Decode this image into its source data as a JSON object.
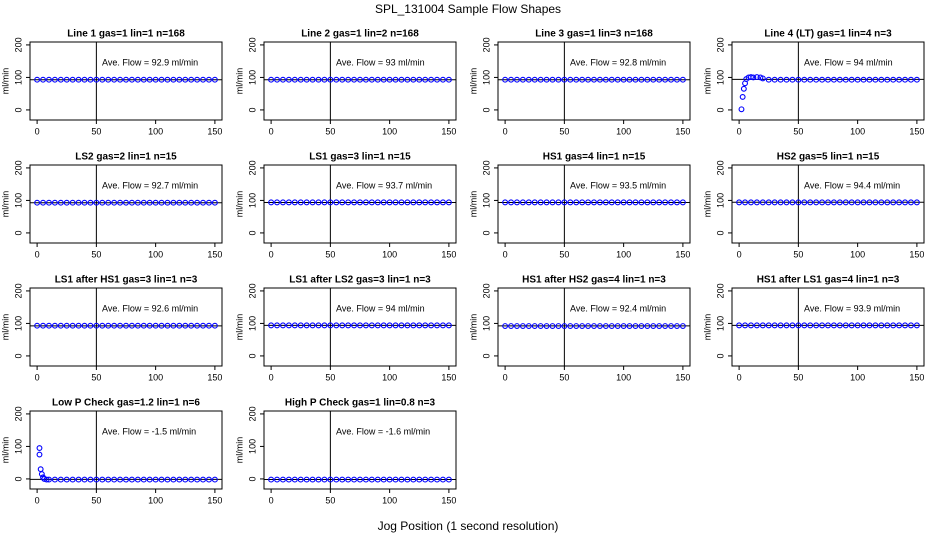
{
  "title": "SPL_131004  Sample Flow Shapes",
  "xlabel": "Jog Position (1 second resolution)",
  "chart_data": [
    {
      "type": "scatter",
      "title": "Line 1 gas=1 lin=1 n=168",
      "annotation": "Ave. Flow = 92.9  ml/min",
      "ylabel": "ml/min",
      "color": "#0000ff",
      "xlim": [
        -6,
        156
      ],
      "ylim": [
        -31,
        209
      ],
      "xticks": [
        0,
        50,
        100,
        150
      ],
      "yticks": [
        0,
        100,
        200
      ],
      "vline": 50,
      "hline": 92.9,
      "x": [
        0,
        5,
        10,
        15,
        20,
        25,
        30,
        35,
        40,
        45,
        50,
        55,
        60,
        65,
        70,
        75,
        80,
        85,
        90,
        95,
        100,
        105,
        110,
        115,
        120,
        125,
        130,
        135,
        140,
        145,
        150
      ],
      "values": [
        93,
        93,
        93,
        93,
        93,
        93,
        93,
        93,
        93,
        93,
        93,
        93,
        93,
        93,
        93,
        93,
        93,
        93,
        93,
        93,
        93,
        93,
        93,
        93,
        93,
        93,
        93,
        93,
        93,
        93,
        93
      ]
    },
    {
      "type": "scatter",
      "title": "Line 2 gas=1 lin=2 n=168",
      "annotation": "Ave. Flow = 93  ml/min",
      "ylabel": "ml/min",
      "color": "#0000ff",
      "xlim": [
        -6,
        156
      ],
      "ylim": [
        -31,
        209
      ],
      "xticks": [
        0,
        50,
        100,
        150
      ],
      "yticks": [
        0,
        100,
        200
      ],
      "vline": 50,
      "hline": 93,
      "x": [
        0,
        5,
        10,
        15,
        20,
        25,
        30,
        35,
        40,
        45,
        50,
        55,
        60,
        65,
        70,
        75,
        80,
        85,
        90,
        95,
        100,
        105,
        110,
        115,
        120,
        125,
        130,
        135,
        140,
        145,
        150
      ],
      "values": [
        93,
        93,
        93,
        93,
        93,
        93,
        93,
        93,
        93,
        93,
        93,
        93,
        93,
        93,
        93,
        93,
        93,
        93,
        93,
        93,
        93,
        93,
        93,
        93,
        93,
        93,
        93,
        93,
        93,
        93,
        93
      ]
    },
    {
      "type": "scatter",
      "title": "Line 3 gas=1 lin=3 n=168",
      "annotation": "Ave. Flow = 92.8  ml/min",
      "ylabel": "ml/min",
      "color": "#0000ff",
      "xlim": [
        -6,
        156
      ],
      "ylim": [
        -31,
        209
      ],
      "xticks": [
        0,
        50,
        100,
        150
      ],
      "yticks": [
        0,
        100,
        200
      ],
      "vline": 50,
      "hline": 92.8,
      "x": [
        0,
        5,
        10,
        15,
        20,
        25,
        30,
        35,
        40,
        45,
        50,
        55,
        60,
        65,
        70,
        75,
        80,
        85,
        90,
        95,
        100,
        105,
        110,
        115,
        120,
        125,
        130,
        135,
        140,
        145,
        150
      ],
      "values": [
        93,
        93,
        93,
        93,
        93,
        93,
        93,
        93,
        93,
        93,
        93,
        93,
        93,
        93,
        93,
        93,
        93,
        93,
        93,
        93,
        93,
        93,
        93,
        93,
        93,
        93,
        93,
        93,
        93,
        93,
        93
      ]
    },
    {
      "type": "scatter",
      "title": "Line 4 (LT) gas=1 lin=4 n=3",
      "annotation": "Ave. Flow = 94  ml/min",
      "ylabel": "ml/min",
      "color": "#0000ff",
      "xlim": [
        -6,
        156
      ],
      "ylim": [
        -31,
        209
      ],
      "xticks": [
        0,
        50,
        100,
        150
      ],
      "yticks": [
        0,
        100,
        200
      ],
      "vline": 50,
      "hline": 94,
      "x": [
        2,
        3,
        4,
        5,
        6,
        8,
        10,
        12,
        15,
        18,
        20,
        25,
        30,
        35,
        40,
        45,
        50,
        55,
        60,
        65,
        70,
        75,
        80,
        85,
        90,
        95,
        100,
        105,
        110,
        115,
        120,
        125,
        130,
        135,
        140,
        145,
        150
      ],
      "values": [
        2,
        40,
        65,
        82,
        95,
        100,
        101,
        100,
        101,
        100,
        97,
        93,
        93,
        93,
        93,
        93,
        93,
        93,
        93,
        93,
        93,
        93,
        93,
        93,
        93,
        93,
        93,
        93,
        93,
        93,
        93,
        93,
        93,
        93,
        93,
        93,
        93
      ]
    },
    {
      "type": "scatter",
      "title": "LS2 gas=2 lin=1 n=15",
      "annotation": "Ave. Flow = 92.7  ml/min",
      "ylabel": "ml/min",
      "color": "#0000ff",
      "xlim": [
        -6,
        156
      ],
      "ylim": [
        -31,
        209
      ],
      "xticks": [
        0,
        50,
        100,
        150
      ],
      "yticks": [
        0,
        100,
        200
      ],
      "vline": 50,
      "hline": 92.7,
      "x": [
        0,
        5,
        10,
        15,
        20,
        25,
        30,
        35,
        40,
        45,
        50,
        55,
        60,
        65,
        70,
        75,
        80,
        85,
        90,
        95,
        100,
        105,
        110,
        115,
        120,
        125,
        130,
        135,
        140,
        145,
        150
      ],
      "values": [
        93,
        93,
        93,
        93,
        93,
        93,
        93,
        93,
        93,
        93,
        93,
        93,
        93,
        93,
        93,
        93,
        93,
        93,
        93,
        93,
        93,
        93,
        93,
        93,
        93,
        93,
        93,
        93,
        93,
        93,
        93
      ]
    },
    {
      "type": "scatter",
      "title": "LS1 gas=3 lin=1 n=15",
      "annotation": "Ave. Flow = 93.7  ml/min",
      "ylabel": "ml/min",
      "color": "#0000ff",
      "xlim": [
        -6,
        156
      ],
      "ylim": [
        -31,
        209
      ],
      "xticks": [
        0,
        50,
        100,
        150
      ],
      "yticks": [
        0,
        100,
        200
      ],
      "vline": 50,
      "hline": 93.7,
      "x": [
        0,
        5,
        10,
        15,
        20,
        25,
        30,
        35,
        40,
        45,
        50,
        55,
        60,
        65,
        70,
        75,
        80,
        85,
        90,
        95,
        100,
        105,
        110,
        115,
        120,
        125,
        130,
        135,
        140,
        145,
        150
      ],
      "values": [
        94,
        94,
        94,
        94,
        94,
        94,
        94,
        94,
        94,
        94,
        94,
        94,
        94,
        94,
        94,
        94,
        94,
        94,
        94,
        94,
        94,
        94,
        94,
        94,
        94,
        94,
        94,
        94,
        94,
        94,
        94
      ]
    },
    {
      "type": "scatter",
      "title": "HS1 gas=4 lin=1 n=15",
      "annotation": "Ave. Flow = 93.5  ml/min",
      "ylabel": "ml/min",
      "color": "#0000ff",
      "xlim": [
        -6,
        156
      ],
      "ylim": [
        -31,
        209
      ],
      "xticks": [
        0,
        50,
        100,
        150
      ],
      "yticks": [
        0,
        100,
        200
      ],
      "vline": 50,
      "hline": 93.5,
      "x": [
        0,
        5,
        10,
        15,
        20,
        25,
        30,
        35,
        40,
        45,
        50,
        55,
        60,
        65,
        70,
        75,
        80,
        85,
        90,
        95,
        100,
        105,
        110,
        115,
        120,
        125,
        130,
        135,
        140,
        145,
        150
      ],
      "values": [
        94,
        94,
        94,
        94,
        94,
        94,
        94,
        94,
        94,
        94,
        94,
        94,
        94,
        94,
        94,
        94,
        94,
        94,
        94,
        94,
        94,
        94,
        94,
        94,
        94,
        94,
        94,
        94,
        94,
        94,
        94
      ]
    },
    {
      "type": "scatter",
      "title": "HS2 gas=5 lin=1 n=15",
      "annotation": "Ave. Flow = 94.4  ml/min",
      "ylabel": "ml/min",
      "color": "#0000ff",
      "xlim": [
        -6,
        156
      ],
      "ylim": [
        -31,
        209
      ],
      "xticks": [
        0,
        50,
        100,
        150
      ],
      "yticks": [
        0,
        100,
        200
      ],
      "vline": 50,
      "hline": 94.4,
      "x": [
        0,
        5,
        10,
        15,
        20,
        25,
        30,
        35,
        40,
        45,
        50,
        55,
        60,
        65,
        70,
        75,
        80,
        85,
        90,
        95,
        100,
        105,
        110,
        115,
        120,
        125,
        130,
        135,
        140,
        145,
        150
      ],
      "values": [
        94,
        94,
        94,
        94,
        94,
        94,
        94,
        94,
        94,
        94,
        94,
        94,
        94,
        94,
        94,
        94,
        94,
        94,
        94,
        94,
        94,
        94,
        94,
        94,
        94,
        94,
        94,
        94,
        94,
        94,
        94
      ]
    },
    {
      "type": "scatter",
      "title": "LS1 after HS1 gas=3 lin=1 n=3",
      "annotation": "Ave. Flow = 92.6  ml/min",
      "ylabel": "ml/min",
      "color": "#0000ff",
      "xlim": [
        -6,
        156
      ],
      "ylim": [
        -31,
        209
      ],
      "xticks": [
        0,
        50,
        100,
        150
      ],
      "yticks": [
        0,
        100,
        200
      ],
      "vline": 50,
      "hline": 92.6,
      "x": [
        0,
        5,
        10,
        15,
        20,
        25,
        30,
        35,
        40,
        45,
        50,
        55,
        60,
        65,
        70,
        75,
        80,
        85,
        90,
        95,
        100,
        105,
        110,
        115,
        120,
        125,
        130,
        135,
        140,
        145,
        150
      ],
      "values": [
        93,
        93,
        93,
        93,
        93,
        93,
        93,
        93,
        93,
        93,
        93,
        93,
        93,
        93,
        93,
        93,
        93,
        93,
        93,
        93,
        93,
        93,
        93,
        93,
        93,
        93,
        93,
        93,
        93,
        93,
        93
      ]
    },
    {
      "type": "scatter",
      "title": "LS1 after LS2 gas=3 lin=1 n=3",
      "annotation": "Ave. Flow = 94  ml/min",
      "ylabel": "ml/min",
      "color": "#0000ff",
      "xlim": [
        -6,
        156
      ],
      "ylim": [
        -31,
        209
      ],
      "xticks": [
        0,
        50,
        100,
        150
      ],
      "yticks": [
        0,
        100,
        200
      ],
      "vline": 50,
      "hline": 94,
      "x": [
        0,
        5,
        10,
        15,
        20,
        25,
        30,
        35,
        40,
        45,
        50,
        55,
        60,
        65,
        70,
        75,
        80,
        85,
        90,
        95,
        100,
        105,
        110,
        115,
        120,
        125,
        130,
        135,
        140,
        145,
        150
      ],
      "values": [
        94,
        94,
        94,
        94,
        94,
        94,
        94,
        94,
        94,
        94,
        94,
        94,
        94,
        94,
        94,
        94,
        94,
        94,
        94,
        94,
        94,
        94,
        94,
        94,
        94,
        94,
        94,
        94,
        94,
        94,
        94
      ]
    },
    {
      "type": "scatter",
      "title": "HS1 after HS2 gas=4 lin=1 n=3",
      "annotation": "Ave. Flow = 92.4  ml/min",
      "ylabel": "ml/min",
      "color": "#0000ff",
      "xlim": [
        -6,
        156
      ],
      "ylim": [
        -31,
        209
      ],
      "xticks": [
        0,
        50,
        100,
        150
      ],
      "yticks": [
        0,
        100,
        200
      ],
      "vline": 50,
      "hline": 92.4,
      "x": [
        0,
        5,
        10,
        15,
        20,
        25,
        30,
        35,
        40,
        45,
        50,
        55,
        60,
        65,
        70,
        75,
        80,
        85,
        90,
        95,
        100,
        105,
        110,
        115,
        120,
        125,
        130,
        135,
        140,
        145,
        150
      ],
      "values": [
        92,
        92,
        92,
        92,
        92,
        92,
        92,
        92,
        92,
        92,
        92,
        92,
        92,
        92,
        92,
        92,
        92,
        92,
        92,
        92,
        92,
        92,
        92,
        92,
        92,
        92,
        92,
        92,
        92,
        92,
        92
      ]
    },
    {
      "type": "scatter",
      "title": "HS1 after LS1 gas=4 lin=1 n=3",
      "annotation": "Ave. Flow = 93.9  ml/min",
      "ylabel": "ml/min",
      "color": "#0000ff",
      "xlim": [
        -6,
        156
      ],
      "ylim": [
        -31,
        209
      ],
      "xticks": [
        0,
        50,
        100,
        150
      ],
      "yticks": [
        0,
        100,
        200
      ],
      "vline": 50,
      "hline": 93.9,
      "x": [
        0,
        5,
        10,
        15,
        20,
        25,
        30,
        35,
        40,
        45,
        50,
        55,
        60,
        65,
        70,
        75,
        80,
        85,
        90,
        95,
        100,
        105,
        110,
        115,
        120,
        125,
        130,
        135,
        140,
        145,
        150
      ],
      "values": [
        94,
        94,
        94,
        94,
        94,
        94,
        94,
        94,
        94,
        94,
        94,
        94,
        94,
        94,
        94,
        94,
        94,
        94,
        94,
        94,
        94,
        94,
        94,
        94,
        94,
        94,
        94,
        94,
        94,
        94,
        94
      ]
    },
    {
      "type": "scatter",
      "title": "Low P Check gas=1.2 lin=1 n=6",
      "annotation": "Ave. Flow = -1.5  ml/min",
      "ylabel": "ml/min",
      "color": "#0000ff",
      "xlim": [
        -6,
        156
      ],
      "ylim": [
        -31,
        209
      ],
      "xticks": [
        0,
        50,
        100,
        150
      ],
      "yticks": [
        0,
        100,
        200
      ],
      "vline": 50,
      "hline": -1.5,
      "x": [
        2,
        2,
        3,
        4,
        5,
        6,
        8,
        10,
        15,
        20,
        25,
        30,
        35,
        40,
        45,
        50,
        55,
        60,
        65,
        70,
        75,
        80,
        85,
        90,
        95,
        100,
        105,
        110,
        115,
        120,
        125,
        130,
        135,
        140,
        145,
        150
      ],
      "values": [
        95,
        75,
        30,
        15,
        5,
        0,
        -2,
        -2,
        -2,
        -2,
        -2,
        -2,
        -2,
        -2,
        -2,
        -2,
        -2,
        -2,
        -2,
        -2,
        -2,
        -2,
        -2,
        -2,
        -2,
        -2,
        -2,
        -2,
        -2,
        -2,
        -2,
        -2,
        -2,
        -2,
        -2,
        -2
      ]
    },
    {
      "type": "scatter",
      "title": "High P Check gas=1 lin=0.8 n=3",
      "annotation": "Ave. Flow = -1.6  ml/min",
      "ylabel": "ml/min",
      "color": "#0000ff",
      "xlim": [
        -6,
        156
      ],
      "ylim": [
        -31,
        209
      ],
      "xticks": [
        0,
        50,
        100,
        150
      ],
      "yticks": [
        0,
        100,
        200
      ],
      "vline": 50,
      "hline": -1.6,
      "x": [
        0,
        5,
        10,
        15,
        20,
        25,
        30,
        35,
        40,
        45,
        50,
        55,
        60,
        65,
        70,
        75,
        80,
        85,
        90,
        95,
        100,
        105,
        110,
        115,
        120,
        125,
        130,
        135,
        140,
        145,
        150
      ],
      "values": [
        -2,
        -2,
        -2,
        -2,
        -2,
        -2,
        -2,
        -2,
        -2,
        -2,
        -2,
        -2,
        -2,
        -2,
        -2,
        -2,
        -2,
        -2,
        -2,
        -2,
        -2,
        -2,
        -2,
        -2,
        -2,
        -2,
        -2,
        -2,
        -2,
        -2,
        -2
      ]
    }
  ]
}
